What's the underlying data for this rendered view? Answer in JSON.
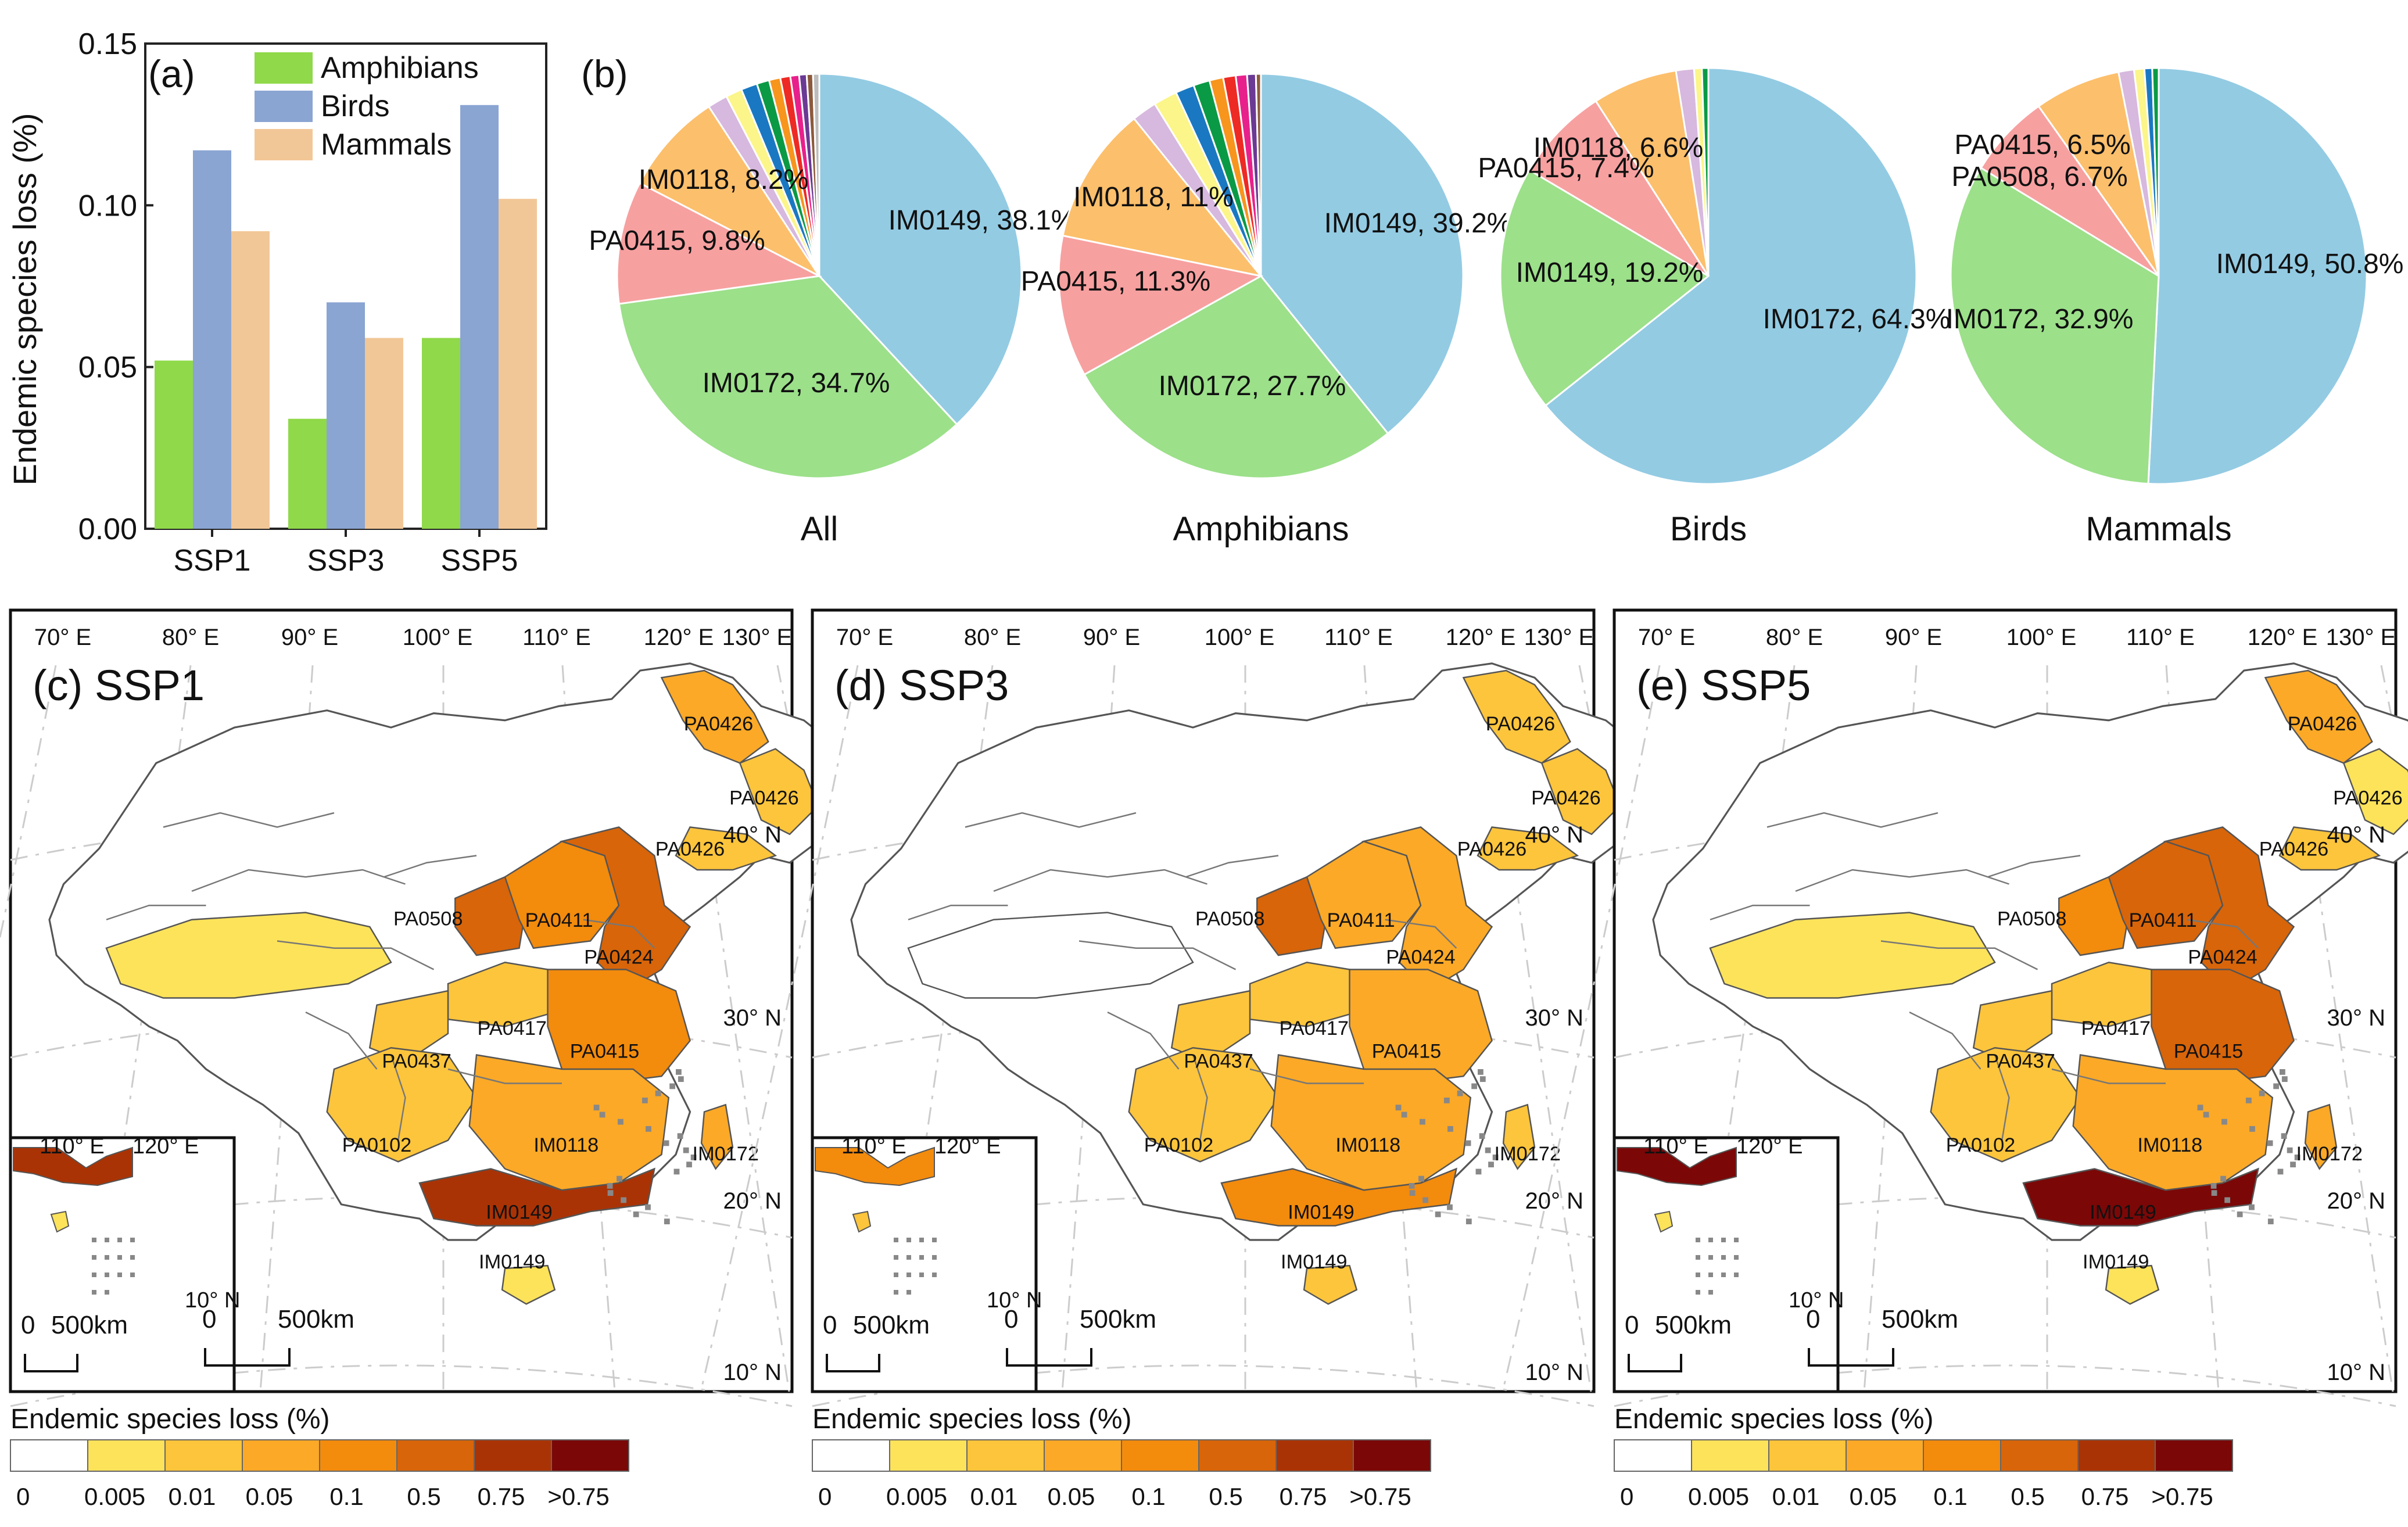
{
  "chart_data": [
    {
      "type": "bar",
      "panel": "(a)",
      "title": "",
      "xlabel": "",
      "ylabel": "Endemic species loss (%)",
      "ylim": [
        0,
        0.15
      ],
      "yticks": [
        "0.00",
        "0.05",
        "0.10",
        "0.15"
      ],
      "categories": [
        "SSP1",
        "SSP3",
        "SSP5"
      ],
      "legend_position": "top-right",
      "series": [
        {
          "name": "Amphibians",
          "color": "#8fd94a",
          "values": [
            0.052,
            0.034,
            0.059
          ]
        },
        {
          "name": "Birds",
          "color": "#8aa5d2",
          "values": [
            0.117,
            0.07,
            0.131
          ]
        },
        {
          "name": "Mammals",
          "color": "#f2c797",
          "values": [
            0.092,
            0.059,
            0.102
          ]
        }
      ]
    },
    {
      "type": "pie",
      "panel": "(b)",
      "pies": [
        {
          "title": "All",
          "slices": [
            {
              "label": "IM0149, 38.1%",
              "value": 38.1,
              "color": "#93cbe3",
              "show": true
            },
            {
              "label": "IM0172, 34.7%",
              "value": 34.7,
              "color": "#9ce08a",
              "show": true
            },
            {
              "label": "PA0415, 9.8%",
              "value": 9.8,
              "color": "#f7a0a0",
              "show": true
            },
            {
              "label": "IM0118, 8.2%",
              "value": 8.2,
              "color": "#fcbf6c",
              "show": true
            },
            {
              "label": "",
              "value": 1.6,
              "color": "#d7b8de",
              "show": false
            },
            {
              "label": "",
              "value": 1.3,
              "color": "#fbf58a",
              "show": false
            },
            {
              "label": "",
              "value": 1.3,
              "color": "#1a78c2",
              "show": false
            },
            {
              "label": "",
              "value": 1.0,
              "color": "#0a9a45",
              "show": false
            },
            {
              "label": "",
              "value": 0.9,
              "color": "#f7951d",
              "show": false
            },
            {
              "label": "",
              "value": 0.8,
              "color": "#ee2a24",
              "show": false
            },
            {
              "label": "",
              "value": 0.7,
              "color": "#e8208c",
              "show": false
            },
            {
              "label": "",
              "value": 0.6,
              "color": "#6b3a94",
              "show": false
            },
            {
              "label": "",
              "value": 0.5,
              "color": "#8c5a3c",
              "show": false
            },
            {
              "label": "",
              "value": 0.5,
              "color": "#bdbdbd",
              "show": false
            }
          ]
        },
        {
          "title": "Amphibians",
          "slices": [
            {
              "label": "IM0149, 39.2%",
              "value": 39.2,
              "color": "#93cbe3",
              "show": true
            },
            {
              "label": "IM0172, 27.7%",
              "value": 27.7,
              "color": "#9ce08a",
              "show": true
            },
            {
              "label": "PA0415, 11.3%",
              "value": 11.3,
              "color": "#f7a0a0",
              "show": true
            },
            {
              "label": "IM0118, 11%",
              "value": 11.0,
              "color": "#fcbf6c",
              "show": true
            },
            {
              "label": "",
              "value": 2.0,
              "color": "#d7b8de",
              "show": false
            },
            {
              "label": "",
              "value": 1.9,
              "color": "#fbf58a",
              "show": false
            },
            {
              "label": "",
              "value": 1.5,
              "color": "#1a78c2",
              "show": false
            },
            {
              "label": "",
              "value": 1.3,
              "color": "#0a9a45",
              "show": false
            },
            {
              "label": "",
              "value": 1.1,
              "color": "#f7951d",
              "show": false
            },
            {
              "label": "",
              "value": 1.0,
              "color": "#ee2a24",
              "show": false
            },
            {
              "label": "",
              "value": 0.9,
              "color": "#e8208c",
              "show": false
            },
            {
              "label": "",
              "value": 0.7,
              "color": "#6b3a94",
              "show": false
            },
            {
              "label": "",
              "value": 0.4,
              "color": "#8c5a3c",
              "show": false
            }
          ]
        },
        {
          "title": "Birds",
          "slices": [
            {
              "label": "IM0172, 64.3%",
              "value": 64.3,
              "color": "#93cbe3",
              "show": true
            },
            {
              "label": "IM0149, 19.2%",
              "value": 19.2,
              "color": "#9ce08a",
              "show": true
            },
            {
              "label": "PA0415, 7.4%",
              "value": 7.4,
              "color": "#f7a0a0",
              "show": true
            },
            {
              "label": "IM0118, 6.6%",
              "value": 6.6,
              "color": "#fcbf6c",
              "show": true
            },
            {
              "label": "",
              "value": 1.4,
              "color": "#d7b8de",
              "show": false
            },
            {
              "label": "",
              "value": 0.6,
              "color": "#fbf58a",
              "show": false
            },
            {
              "label": "",
              "value": 0.5,
              "color": "#0a9a45",
              "show": false
            }
          ]
        },
        {
          "title": "Mammals",
          "slices": [
            {
              "label": "IM0149, 50.8%",
              "value": 50.8,
              "color": "#93cbe3",
              "show": true
            },
            {
              "label": "IM0172, 32.9%",
              "value": 32.9,
              "color": "#9ce08a",
              "show": true
            },
            {
              "label": "PA0415, 6.5%",
              "value": 6.5,
              "color": "#f7a0a0",
              "show": true
            },
            {
              "label": "PA0508, 6.7%",
              "value": 6.7,
              "color": "#fcbf6c",
              "show": true
            },
            {
              "label": "",
              "value": 1.2,
              "color": "#d7b8de",
              "show": false
            },
            {
              "label": "",
              "value": 0.8,
              "color": "#fbf58a",
              "show": false
            },
            {
              "label": "",
              "value": 0.6,
              "color": "#1a78c2",
              "show": false
            },
            {
              "label": "",
              "value": 0.5,
              "color": "#0a9a45",
              "show": false
            }
          ]
        }
      ]
    },
    {
      "type": "map",
      "panels": [
        {
          "tag": "(c) SSP1",
          "loss_class": {
            "IM0149": 6,
            "IM0172": 3,
            "IM0118": 3,
            "PA0102": 2,
            "PA0415": 4,
            "PA0417": 2,
            "PA0437": 2,
            "PA0424": 5,
            "PA0411": 4,
            "PA0508": 5,
            "PA0426a": 3,
            "PA0426b": 2,
            "PA0426c": 2,
            "NW": 1,
            "IM0149b": 1
          }
        },
        {
          "tag": "(d) SSP3",
          "loss_class": {
            "IM0149": 4,
            "IM0172": 2,
            "IM0118": 3,
            "PA0102": 2,
            "PA0415": 3,
            "PA0417": 2,
            "PA0437": 2,
            "PA0424": 3,
            "PA0411": 3,
            "PA0508": 5,
            "PA0426a": 2,
            "PA0426b": 2,
            "PA0426c": 2,
            "NW": 0,
            "IM0149b": 2
          }
        },
        {
          "tag": "(e) SSP5",
          "loss_class": {
            "IM0149": 7,
            "IM0172": 3,
            "IM0118": 3,
            "PA0102": 2,
            "PA0415": 5,
            "PA0417": 2,
            "PA0437": 2,
            "PA0424": 5,
            "PA0411": 5,
            "PA0508": 4,
            "PA0426a": 3,
            "PA0426b": 1,
            "PA0426c": 2,
            "NW": 1,
            "IM0149b": 1
          }
        }
      ],
      "lon_labels": [
        "70° E",
        "80° E",
        "90° E",
        "100° E",
        "110° E",
        "120° E",
        "130° E"
      ],
      "lat_labels": [
        "40° N",
        "30° N",
        "20° N",
        "10° N"
      ],
      "inset_lon_labels": [
        "110° E",
        "120° E"
      ],
      "inset_lat_label": "10° N",
      "region_labels": [
        "PA0426",
        "PA0426",
        "PA0426",
        "PA0508",
        "PA0411",
        "PA0424",
        "PA0417",
        "PA0437",
        "PA0415",
        "PA0102",
        "IM0118",
        "IM0172",
        "IM0149",
        "IM0149"
      ],
      "scale_bar": {
        "zero": "0",
        "label": "500km"
      },
      "legend": {
        "title": "Endemic species loss (%)",
        "colors": [
          "#ffffff",
          "#fde35a",
          "#fdc53c",
          "#fba927",
          "#f38b0d",
          "#d8650a",
          "#aa3305",
          "#7b0707"
        ],
        "labels": [
          "0",
          "0.005",
          "0.01",
          "0.05",
          "0.1",
          "0.5",
          "0.75",
          ">0.75"
        ]
      }
    }
  ]
}
